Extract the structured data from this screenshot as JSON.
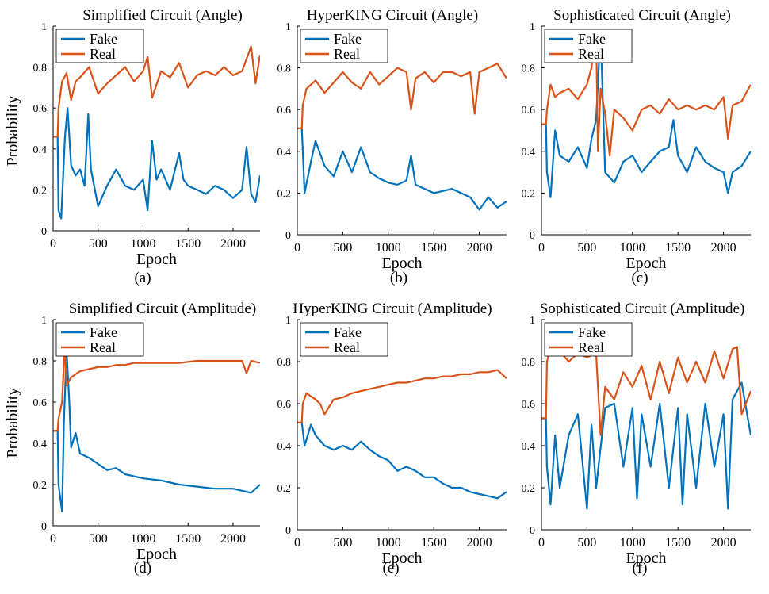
{
  "figure": {
    "ylabel": "Probability",
    "xlabel": "Epoch"
  },
  "chart_data": [
    {
      "type": "line",
      "title": "Simplified Circuit (Angle)",
      "panel_label": "(a)",
      "xlabel": "Epoch",
      "ylabel": "Probability",
      "xlim": [
        0,
        2300
      ],
      "ylim": [
        0,
        1
      ],
      "xticks": [
        0,
        500,
        1000,
        1500,
        2000
      ],
      "yticks": [
        0,
        0.2,
        0.4,
        0.6,
        0.8,
        1
      ],
      "legend": {
        "position": "top-left",
        "entries": [
          "Fake",
          "Real"
        ]
      },
      "series": [
        {
          "name": "Fake",
          "color": "#0072BD",
          "x": [
            0,
            50,
            60,
            90,
            130,
            160,
            200,
            250,
            300,
            350,
            390,
            420,
            500,
            600,
            700,
            800,
            900,
            1000,
            1050,
            1100,
            1150,
            1200,
            1300,
            1400,
            1450,
            1500,
            1600,
            1700,
            1800,
            1900,
            2000,
            2100,
            2150,
            2200,
            2250,
            2300
          ],
          "y": [
            0.46,
            0.46,
            0.1,
            0.06,
            0.45,
            0.6,
            0.32,
            0.27,
            0.3,
            0.22,
            0.57,
            0.3,
            0.12,
            0.22,
            0.3,
            0.22,
            0.2,
            0.25,
            0.1,
            0.44,
            0.25,
            0.3,
            0.2,
            0.38,
            0.25,
            0.22,
            0.2,
            0.18,
            0.22,
            0.2,
            0.16,
            0.2,
            0.41,
            0.18,
            0.14,
            0.27
          ]
        },
        {
          "name": "Real",
          "color": "#D95319",
          "x": [
            0,
            50,
            60,
            100,
            150,
            200,
            250,
            300,
            400,
            500,
            600,
            700,
            800,
            900,
            1000,
            1050,
            1100,
            1200,
            1300,
            1400,
            1500,
            1600,
            1700,
            1800,
            1900,
            2000,
            2100,
            2200,
            2250,
            2300
          ],
          "y": [
            0.46,
            0.46,
            0.6,
            0.73,
            0.77,
            0.64,
            0.73,
            0.75,
            0.8,
            0.67,
            0.72,
            0.76,
            0.8,
            0.73,
            0.78,
            0.85,
            0.65,
            0.78,
            0.75,
            0.82,
            0.7,
            0.76,
            0.78,
            0.76,
            0.8,
            0.76,
            0.78,
            0.9,
            0.72,
            0.86
          ]
        }
      ]
    },
    {
      "type": "line",
      "title": "HyperKING Circuit (Angle)",
      "panel_label": "(b)",
      "xlabel": "Epoch",
      "ylabel": "",
      "xlim": [
        0,
        2300
      ],
      "ylim": [
        0,
        1
      ],
      "xticks": [
        0,
        500,
        1000,
        1500,
        2000
      ],
      "yticks": [
        0,
        0.2,
        0.4,
        0.6,
        0.8,
        1
      ],
      "legend": {
        "position": "top-left",
        "entries": [
          "Fake",
          "Real"
        ]
      },
      "series": [
        {
          "name": "Fake",
          "color": "#0072BD",
          "x": [
            0,
            50,
            80,
            150,
            200,
            300,
            400,
            500,
            600,
            700,
            800,
            900,
            1000,
            1100,
            1200,
            1250,
            1300,
            1400,
            1500,
            1600,
            1700,
            1800,
            1900,
            2000,
            2100,
            2200,
            2300
          ],
          "y": [
            0.51,
            0.51,
            0.2,
            0.35,
            0.45,
            0.33,
            0.28,
            0.4,
            0.3,
            0.42,
            0.3,
            0.27,
            0.25,
            0.24,
            0.26,
            0.38,
            0.24,
            0.22,
            0.2,
            0.21,
            0.22,
            0.2,
            0.18,
            0.12,
            0.18,
            0.13,
            0.16
          ]
        },
        {
          "name": "Real",
          "color": "#D95319",
          "x": [
            0,
            50,
            60,
            100,
            200,
            300,
            400,
            500,
            600,
            700,
            800,
            900,
            1000,
            1100,
            1200,
            1250,
            1300,
            1400,
            1500,
            1600,
            1700,
            1800,
            1900,
            1950,
            2000,
            2100,
            2200,
            2300
          ],
          "y": [
            0.51,
            0.51,
            0.62,
            0.7,
            0.74,
            0.68,
            0.73,
            0.78,
            0.73,
            0.7,
            0.78,
            0.72,
            0.76,
            0.8,
            0.78,
            0.6,
            0.75,
            0.78,
            0.73,
            0.78,
            0.78,
            0.76,
            0.78,
            0.58,
            0.78,
            0.8,
            0.82,
            0.75
          ]
        }
      ]
    },
    {
      "type": "line",
      "title": "Sophisticated Circuit (Angle)",
      "panel_label": "(c)",
      "xlabel": "Epoch",
      "ylabel": "",
      "xlim": [
        0,
        2300
      ],
      "ylim": [
        0,
        1
      ],
      "xticks": [
        0,
        500,
        1000,
        1500,
        2000
      ],
      "yticks": [
        0,
        0.2,
        0.4,
        0.6,
        0.8,
        1
      ],
      "legend": {
        "position": "top-left",
        "entries": [
          "Fake",
          "Real"
        ]
      },
      "series": [
        {
          "name": "Fake",
          "color": "#0072BD",
          "x": [
            0,
            50,
            60,
            100,
            150,
            200,
            300,
            400,
            500,
            550,
            600,
            650,
            700,
            800,
            900,
            1000,
            1100,
            1200,
            1300,
            1400,
            1450,
            1500,
            1600,
            1700,
            1800,
            1900,
            2000,
            2050,
            2100,
            2200,
            2300
          ],
          "y": [
            0.53,
            0.53,
            0.3,
            0.18,
            0.5,
            0.38,
            0.35,
            0.42,
            0.32,
            0.46,
            0.55,
            0.98,
            0.3,
            0.25,
            0.35,
            0.38,
            0.3,
            0.35,
            0.4,
            0.42,
            0.55,
            0.38,
            0.3,
            0.42,
            0.35,
            0.32,
            0.3,
            0.2,
            0.3,
            0.33,
            0.4
          ]
        },
        {
          "name": "Real",
          "color": "#D95319",
          "x": [
            0,
            50,
            60,
            100,
            150,
            200,
            300,
            400,
            500,
            550,
            600,
            620,
            650,
            700,
            750,
            800,
            900,
            1000,
            1100,
            1200,
            1300,
            1400,
            1500,
            1600,
            1700,
            1800,
            1900,
            2000,
            2050,
            2100,
            2200,
            2300
          ],
          "y": [
            0.53,
            0.53,
            0.6,
            0.72,
            0.66,
            0.68,
            0.7,
            0.65,
            0.72,
            0.8,
            0.98,
            0.4,
            0.7,
            0.58,
            0.38,
            0.6,
            0.56,
            0.5,
            0.6,
            0.62,
            0.58,
            0.65,
            0.6,
            0.62,
            0.6,
            0.62,
            0.6,
            0.66,
            0.46,
            0.62,
            0.64,
            0.72
          ]
        }
      ]
    },
    {
      "type": "line",
      "title": "Simplified Circuit (Amplitude)",
      "panel_label": "(d)",
      "xlabel": "Epoch",
      "ylabel": "Probability",
      "xlim": [
        0,
        2300
      ],
      "ylim": [
        0,
        1
      ],
      "xticks": [
        0,
        500,
        1000,
        1500,
        2000
      ],
      "yticks": [
        0,
        0.2,
        0.4,
        0.6,
        0.8,
        1
      ],
      "legend": {
        "position": "top-left",
        "entries": [
          "Fake",
          "Real"
        ]
      },
      "series": [
        {
          "name": "Fake",
          "color": "#0072BD",
          "x": [
            0,
            50,
            60,
            100,
            120,
            150,
            180,
            200,
            250,
            300,
            400,
            500,
            600,
            700,
            800,
            900,
            1000,
            1200,
            1400,
            1600,
            1800,
            2000,
            2200,
            2300
          ],
          "y": [
            0.46,
            0.46,
            0.2,
            0.07,
            0.5,
            0.85,
            0.6,
            0.38,
            0.45,
            0.35,
            0.33,
            0.3,
            0.27,
            0.28,
            0.25,
            0.24,
            0.23,
            0.22,
            0.2,
            0.19,
            0.18,
            0.18,
            0.16,
            0.2
          ]
        },
        {
          "name": "Real",
          "color": "#D95319",
          "x": [
            0,
            50,
            60,
            100,
            130,
            150,
            200,
            300,
            400,
            500,
            600,
            700,
            800,
            900,
            1000,
            1200,
            1400,
            1600,
            1800,
            2000,
            2100,
            2150,
            2200,
            2300
          ],
          "y": [
            0.46,
            0.46,
            0.52,
            0.6,
            0.88,
            0.68,
            0.72,
            0.75,
            0.76,
            0.77,
            0.77,
            0.78,
            0.78,
            0.79,
            0.79,
            0.79,
            0.79,
            0.8,
            0.8,
            0.8,
            0.8,
            0.74,
            0.8,
            0.79
          ]
        }
      ]
    },
    {
      "type": "line",
      "title": "HyperKING Circuit (Amplitude)",
      "panel_label": "(e)",
      "xlabel": "Epoch",
      "ylabel": "",
      "xlim": [
        0,
        2300
      ],
      "ylim": [
        0,
        1
      ],
      "xticks": [
        0,
        500,
        1000,
        1500,
        2000
      ],
      "yticks": [
        0,
        0.2,
        0.4,
        0.6,
        0.8,
        1
      ],
      "legend": {
        "position": "top-left",
        "entries": [
          "Fake",
          "Real"
        ]
      },
      "series": [
        {
          "name": "Fake",
          "color": "#0072BD",
          "x": [
            0,
            50,
            80,
            150,
            200,
            300,
            400,
            500,
            600,
            700,
            800,
            900,
            1000,
            1100,
            1200,
            1300,
            1400,
            1500,
            1600,
            1700,
            1800,
            1900,
            2000,
            2100,
            2200,
            2300
          ],
          "y": [
            0.51,
            0.51,
            0.4,
            0.5,
            0.45,
            0.4,
            0.38,
            0.4,
            0.38,
            0.42,
            0.38,
            0.35,
            0.33,
            0.28,
            0.3,
            0.28,
            0.25,
            0.25,
            0.22,
            0.2,
            0.2,
            0.18,
            0.17,
            0.16,
            0.15,
            0.18
          ]
        },
        {
          "name": "Real",
          "color": "#D95319",
          "x": [
            0,
            50,
            60,
            100,
            200,
            250,
            300,
            400,
            500,
            600,
            700,
            800,
            900,
            1000,
            1100,
            1200,
            1300,
            1400,
            1500,
            1600,
            1700,
            1800,
            1900,
            2000,
            2100,
            2200,
            2300
          ],
          "y": [
            0.51,
            0.51,
            0.6,
            0.65,
            0.62,
            0.6,
            0.55,
            0.62,
            0.63,
            0.65,
            0.66,
            0.67,
            0.68,
            0.69,
            0.7,
            0.7,
            0.71,
            0.72,
            0.72,
            0.73,
            0.73,
            0.74,
            0.74,
            0.75,
            0.75,
            0.76,
            0.72
          ]
        }
      ]
    },
    {
      "type": "line",
      "title": "Sophisticated Circuit (Amplitude)",
      "panel_label": "(f)",
      "xlabel": "Epoch",
      "ylabel": "",
      "xlim": [
        0,
        2300
      ],
      "ylim": [
        0,
        1
      ],
      "xticks": [
        0,
        500,
        1000,
        1500,
        2000
      ],
      "yticks": [
        0,
        0.2,
        0.4,
        0.6,
        0.8,
        1
      ],
      "legend": {
        "position": "top-left",
        "entries": [
          "Fake",
          "Real"
        ]
      },
      "series": [
        {
          "name": "Fake",
          "color": "#0072BD",
          "x": [
            0,
            50,
            60,
            100,
            150,
            200,
            300,
            400,
            500,
            550,
            600,
            700,
            800,
            900,
            1000,
            1050,
            1100,
            1200,
            1300,
            1400,
            1500,
            1550,
            1600,
            1700,
            1800,
            1900,
            2000,
            2050,
            2100,
            2200,
            2300
          ],
          "y": [
            0.53,
            0.53,
            0.3,
            0.12,
            0.45,
            0.2,
            0.45,
            0.55,
            0.1,
            0.5,
            0.2,
            0.58,
            0.6,
            0.3,
            0.58,
            0.15,
            0.55,
            0.3,
            0.6,
            0.2,
            0.58,
            0.12,
            0.55,
            0.2,
            0.6,
            0.3,
            0.55,
            0.1,
            0.62,
            0.7,
            0.45
          ]
        },
        {
          "name": "Real",
          "color": "#D95319",
          "x": [
            0,
            50,
            60,
            100,
            200,
            300,
            400,
            500,
            600,
            650,
            700,
            800,
            900,
            1000,
            1100,
            1200,
            1300,
            1400,
            1500,
            1600,
            1700,
            1800,
            1900,
            2000,
            2100,
            2150,
            2200,
            2300
          ],
          "y": [
            0.53,
            0.53,
            0.8,
            0.87,
            0.85,
            0.8,
            0.84,
            0.82,
            0.84,
            0.45,
            0.68,
            0.62,
            0.75,
            0.68,
            0.78,
            0.62,
            0.8,
            0.65,
            0.82,
            0.7,
            0.8,
            0.7,
            0.85,
            0.72,
            0.86,
            0.87,
            0.55,
            0.66
          ]
        }
      ]
    }
  ]
}
